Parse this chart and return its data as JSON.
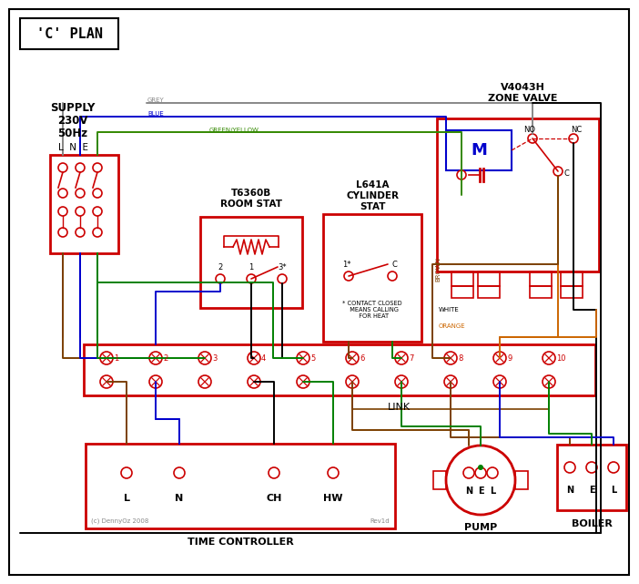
{
  "title": "'C' PLAN",
  "zone_valve_title": "V4043H\nZONE VALVE",
  "room_stat_title": "T6360B\nROOM STAT",
  "cyl_stat_title": "L641A\nCYLINDER\nSTAT",
  "tc_title": "TIME CONTROLLER",
  "pump_title": "PUMP",
  "boiler_title": "BOILER",
  "link_text": "LINK",
  "footnote": "* CONTACT CLOSED\n  MEANS CALLING\n  FOR HEAT",
  "copyright": "(c) DennyOz 2008",
  "rev": "Rev1d",
  "red": "#cc0000",
  "blue": "#0000cc",
  "green": "#008000",
  "grey": "#888888",
  "brown": "#7b3f00",
  "orange": "#cc6600",
  "black": "#000000",
  "gy": "#338800",
  "lne_label": "L  N  E",
  "supply_lines": [
    "SUPPLY",
    "230V",
    "50Hz"
  ],
  "wire_labels": [
    "GREY",
    "BLUE",
    "GREEN/YELLOW",
    "BROWN",
    "WHITE",
    "ORANGE"
  ]
}
